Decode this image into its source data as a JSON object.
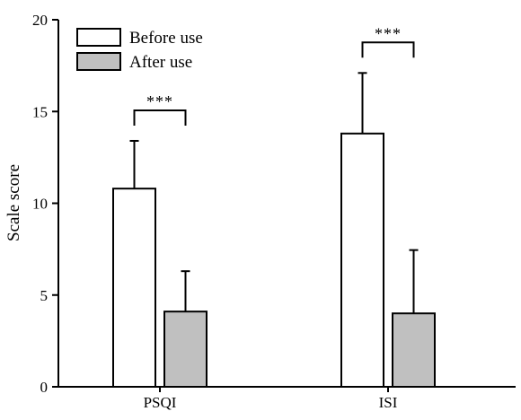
{
  "chart_data": {
    "type": "bar",
    "categories": [
      "PSQI",
      "ISI"
    ],
    "series": [
      {
        "name": "Before use",
        "color": "#ffffff",
        "values": [
          10.8,
          13.8
        ],
        "error": [
          2.6,
          3.3
        ]
      },
      {
        "name": "After use",
        "color": "#c0c0c0",
        "values": [
          4.1,
          4.0
        ],
        "error": [
          2.2,
          3.45
        ]
      }
    ],
    "ylabel": "Scale score",
    "xlabel": "",
    "ylim": [
      0,
      20
    ],
    "yticks": [
      0,
      5,
      10,
      15,
      20
    ],
    "legend_position": "top-left",
    "grid": false,
    "annotations": [
      {
        "category": "PSQI",
        "text": "***"
      },
      {
        "category": "ISI",
        "text": "***"
      }
    ]
  }
}
